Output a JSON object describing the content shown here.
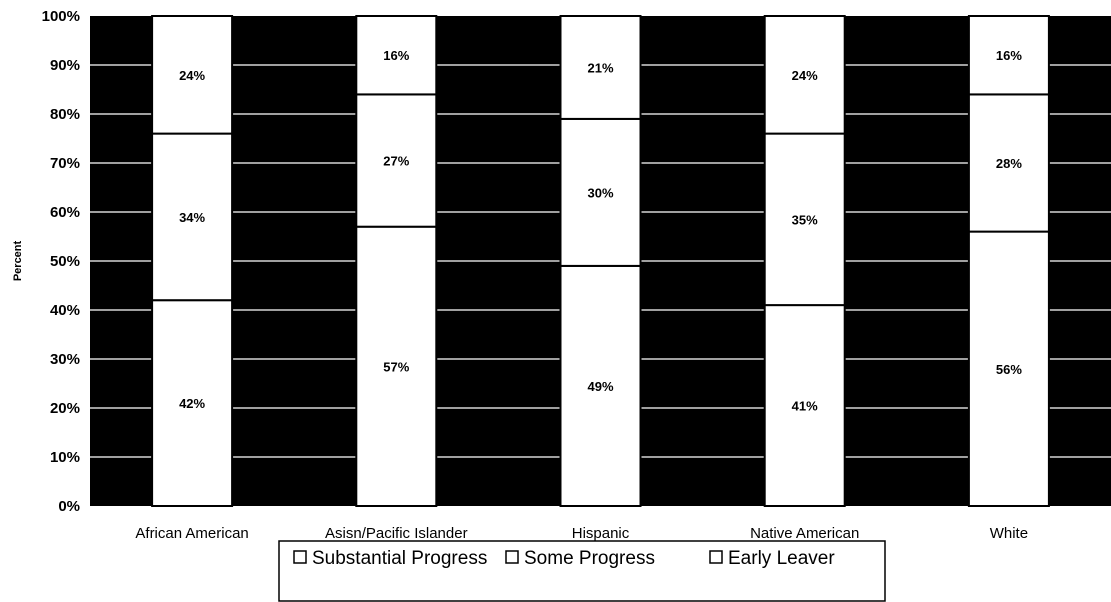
{
  "chart_data": {
    "type": "bar",
    "stacked": true,
    "categories": [
      "African American",
      "Asisn/Pacific Islander",
      "Hispanic",
      "Native American",
      "White"
    ],
    "series": [
      {
        "name": "Substantial Progress",
        "values": [
          42,
          57,
          49,
          41,
          56
        ]
      },
      {
        "name": "Some Progress",
        "values": [
          34,
          27,
          30,
          35,
          28
        ]
      },
      {
        "name": "Early Leaver",
        "values": [
          24,
          16,
          21,
          24,
          16
        ]
      }
    ],
    "data_labels": [
      [
        "42%",
        "57%",
        "49%",
        "41%",
        "56%"
      ],
      [
        "34%",
        "27%",
        "30%",
        "35%",
        "28%"
      ],
      [
        "24%",
        "16%",
        "21%",
        "24%",
        "16%"
      ]
    ],
    "y_ticks": [
      "0%",
      "10%",
      "20%",
      "30%",
      "40%",
      "50%",
      "60%",
      "70%",
      "80%",
      "90%",
      "100%"
    ],
    "ylabel": "Percent",
    "ylim": [
      0,
      100
    ],
    "grid": true,
    "legend_position": "bottom",
    "colors": {
      "plot_background": "#000000",
      "bar_fill": "#ffffff",
      "gridline": "#ffffff",
      "text": "#000000"
    }
  }
}
